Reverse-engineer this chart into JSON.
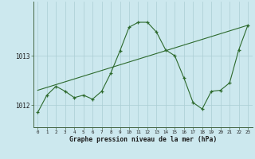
{
  "hours": [
    0,
    1,
    2,
    3,
    4,
    5,
    6,
    7,
    8,
    9,
    10,
    11,
    12,
    13,
    14,
    15,
    16,
    17,
    18,
    19,
    20,
    21,
    22,
    23
  ],
  "pressure": [
    1011.85,
    1012.2,
    1012.38,
    1012.28,
    1012.15,
    1012.2,
    1012.12,
    1012.28,
    1012.65,
    1013.1,
    1013.58,
    1013.68,
    1013.68,
    1013.48,
    1013.12,
    1013.0,
    1012.55,
    1012.05,
    1011.92,
    1012.28,
    1012.3,
    1012.45,
    1013.12,
    1013.62
  ],
  "trend_x": [
    0,
    23
  ],
  "trend_y": [
    1012.3,
    1013.62
  ],
  "line_color": "#2d6a2d",
  "bg_color": "#cce8ee",
  "grid_color": "#aacdd4",
  "xlabel": "Graphe pression niveau de la mer (hPa)",
  "ylim": [
    1011.55,
    1014.1
  ],
  "xlim": [
    -0.5,
    23.5
  ]
}
